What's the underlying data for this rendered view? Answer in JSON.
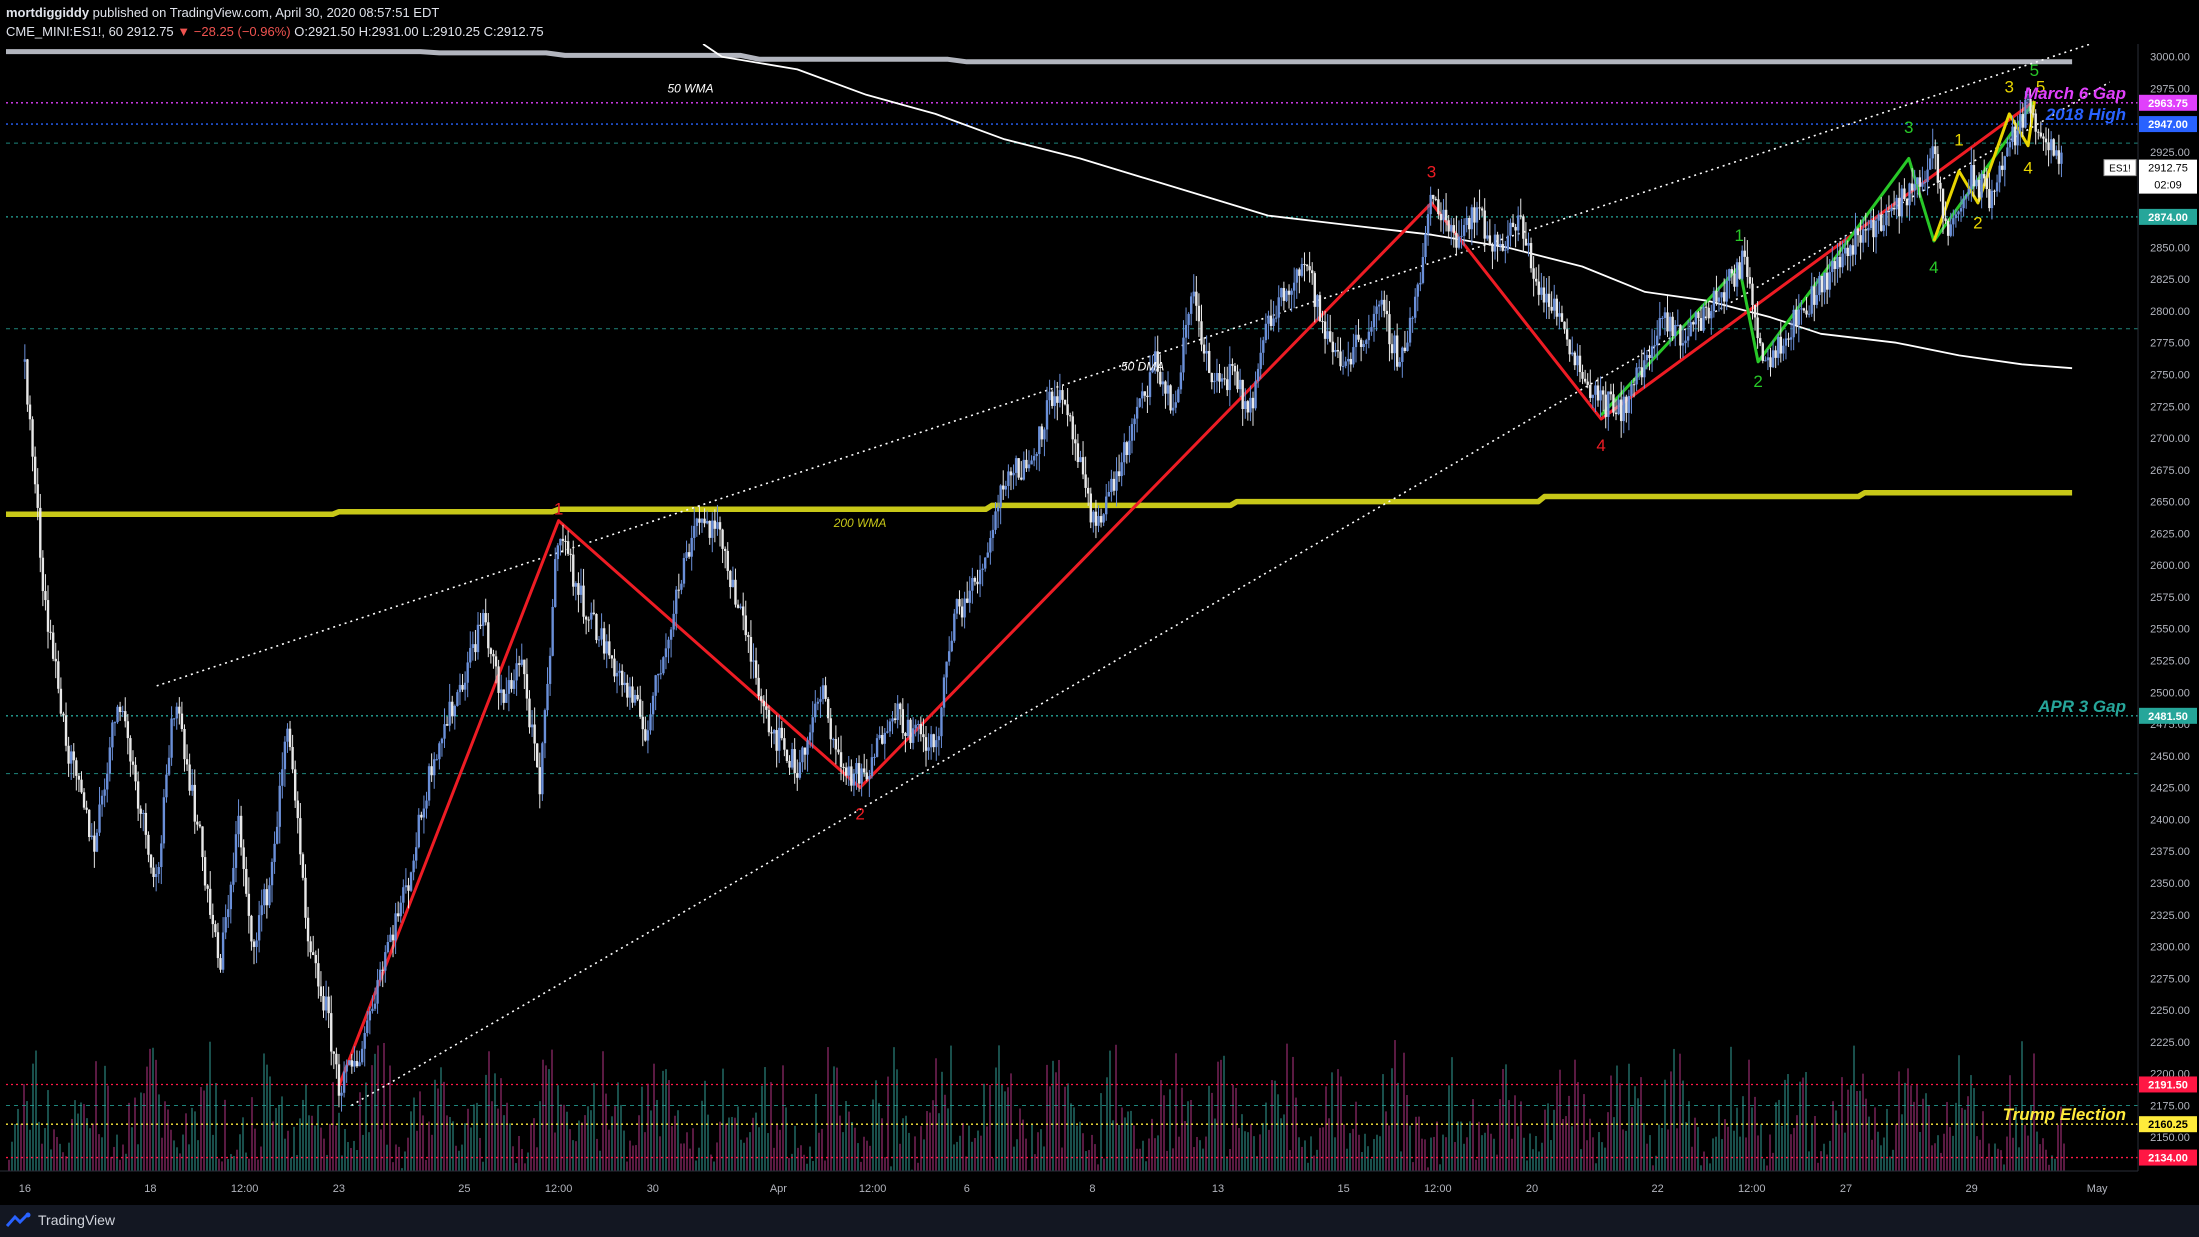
{
  "header": {
    "author": "mortdiggiddy",
    "published": " published on TradingView.com, April 30, 2020 08:57:51 EDT",
    "symbol": "CME_MINI:ES1!, 60",
    "last": "2912.75",
    "change": "▼ −28.25 (−0.96%)",
    "ohlc": "O:2921.50 H:2931.00 L:2910.25 C:2912.75"
  },
  "footer": {
    "brand": "TradingView"
  },
  "chart_data": {
    "type": "candlestick",
    "symbol": "ES1!",
    "interval": "60",
    "ylim": [
      2125,
      3010
    ],
    "y_ticks": [
      2150,
      2175,
      2200,
      2225,
      2250,
      2275,
      2300,
      2325,
      2350,
      2375,
      2400,
      2425,
      2450,
      2475,
      2500,
      2525,
      2550,
      2575,
      2600,
      2625,
      2650,
      2675,
      2700,
      2725,
      2750,
      2775,
      2800,
      2825,
      2850,
      2875,
      2900,
      2925,
      2950,
      2975,
      3000
    ],
    "x_ticks": [
      {
        "label": "16",
        "t": 0
      },
      {
        "label": "18",
        "t": 2
      },
      {
        "label": "12:00",
        "t": 3.5
      },
      {
        "label": "23",
        "t": 5
      },
      {
        "label": "25",
        "t": 7
      },
      {
        "label": "12:00",
        "t": 8.5
      },
      {
        "label": "30",
        "t": 10
      },
      {
        "label": "Apr",
        "t": 12
      },
      {
        "label": "12:00",
        "t": 13.5
      },
      {
        "label": "6",
        "t": 15
      },
      {
        "label": "8",
        "t": 17
      },
      {
        "label": "13",
        "t": 19
      },
      {
        "label": "15",
        "t": 21
      },
      {
        "label": "12:00",
        "t": 22.5
      },
      {
        "label": "20",
        "t": 24
      },
      {
        "label": "22",
        "t": 26
      },
      {
        "label": "12:00",
        "t": 27.5
      },
      {
        "label": "27",
        "t": 29
      },
      {
        "label": "29",
        "t": 31
      },
      {
        "label": "May",
        "t": 33
      }
    ],
    "x_domain": [
      -0.3,
      33.65
    ],
    "price_path": [
      [
        0,
        2760
      ],
      [
        0.3,
        2580
      ],
      [
        0.7,
        2450
      ],
      [
        1.1,
        2380
      ],
      [
        1.5,
        2500
      ],
      [
        1.8,
        2420
      ],
      [
        2.1,
        2350
      ],
      [
        2.4,
        2500
      ],
      [
        2.8,
        2380
      ],
      [
        3.1,
        2280
      ],
      [
        3.4,
        2400
      ],
      [
        3.6,
        2300
      ],
      [
        3.9,
        2350
      ],
      [
        4.2,
        2480
      ],
      [
        4.5,
        2300
      ],
      [
        4.8,
        2250
      ],
      [
        5.0,
        2190
      ],
      [
        5.3,
        2210
      ],
      [
        5.7,
        2290
      ],
      [
        6.1,
        2350
      ],
      [
        6.5,
        2450
      ],
      [
        6.9,
        2500
      ],
      [
        7.3,
        2560
      ],
      [
        7.6,
        2490
      ],
      [
        7.9,
        2530
      ],
      [
        8.2,
        2420
      ],
      [
        8.5,
        2635
      ],
      [
        8.8,
        2580
      ],
      [
        9.2,
        2540
      ],
      [
        9.6,
        2500
      ],
      [
        9.9,
        2470
      ],
      [
        10.3,
        2560
      ],
      [
        10.7,
        2640
      ],
      [
        11.1,
        2620
      ],
      [
        11.5,
        2540
      ],
      [
        11.9,
        2470
      ],
      [
        12.3,
        2440
      ],
      [
        12.7,
        2500
      ],
      [
        13.0,
        2440
      ],
      [
        13.4,
        2430
      ],
      [
        13.8,
        2490
      ],
      [
        14.1,
        2470
      ],
      [
        14.5,
        2455
      ],
      [
        14.8,
        2560
      ],
      [
        15.2,
        2590
      ],
      [
        15.6,
        2670
      ],
      [
        16.0,
        2680
      ],
      [
        16.4,
        2740
      ],
      [
        16.7,
        2700
      ],
      [
        17.0,
        2630
      ],
      [
        17.3,
        2660
      ],
      [
        17.6,
        2700
      ],
      [
        18.0,
        2760
      ],
      [
        18.3,
        2720
      ],
      [
        18.6,
        2820
      ],
      [
        18.9,
        2740
      ],
      [
        19.2,
        2750
      ],
      [
        19.5,
        2720
      ],
      [
        19.8,
        2790
      ],
      [
        20.1,
        2820
      ],
      [
        20.4,
        2840
      ],
      [
        20.7,
        2780
      ],
      [
        21.0,
        2760
      ],
      [
        21.3,
        2780
      ],
      [
        21.6,
        2800
      ],
      [
        21.9,
        2760
      ],
      [
        22.2,
        2820
      ],
      [
        22.4,
        2890
      ],
      [
        22.8,
        2860
      ],
      [
        23.1,
        2880
      ],
      [
        23.4,
        2850
      ],
      [
        23.8,
        2870
      ],
      [
        24.1,
        2820
      ],
      [
        24.5,
        2790
      ],
      [
        24.8,
        2750
      ],
      [
        25.1,
        2730
      ],
      [
        25.4,
        2720
      ],
      [
        25.8,
        2760
      ],
      [
        26.1,
        2790
      ],
      [
        26.4,
        2780
      ],
      [
        26.8,
        2800
      ],
      [
        27.1,
        2820
      ],
      [
        27.4,
        2840
      ],
      [
        27.7,
        2760
      ],
      [
        28.0,
        2780
      ],
      [
        28.3,
        2800
      ],
      [
        28.6,
        2820
      ],
      [
        28.9,
        2840
      ],
      [
        29.2,
        2860
      ],
      [
        29.5,
        2870
      ],
      [
        29.8,
        2880
      ],
      [
        30.1,
        2900
      ],
      [
        30.4,
        2920
      ],
      [
        30.6,
        2860
      ],
      [
        30.8,
        2880
      ],
      [
        31.0,
        2905
      ],
      [
        31.3,
        2890
      ],
      [
        31.6,
        2930
      ],
      [
        31.9,
        2960
      ],
      [
        32.1,
        2945
      ],
      [
        32.3,
        2920
      ],
      [
        32.45,
        2912.75
      ]
    ],
    "series": [
      {
        "name": "50 WMA",
        "color": "#b2b5be",
        "points": [
          [
            -0.3,
            3004
          ],
          [
            6.3,
            3004
          ],
          [
            6.6,
            3003
          ],
          [
            8.3,
            3003
          ],
          [
            8.6,
            3001
          ],
          [
            11.4,
            3001
          ],
          [
            11.7,
            2998
          ],
          [
            14.7,
            2998
          ],
          [
            15.0,
            2996
          ],
          [
            32.6,
            2996
          ]
        ]
      },
      {
        "name": "200 WMA",
        "color": "#c8c818",
        "points": [
          [
            -0.3,
            2640
          ],
          [
            4.9,
            2640
          ],
          [
            5.0,
            2642
          ],
          [
            8.4,
            2642
          ],
          [
            8.5,
            2644
          ],
          [
            15.3,
            2644
          ],
          [
            15.4,
            2647
          ],
          [
            19.2,
            2647
          ],
          [
            19.3,
            2650
          ],
          [
            24.1,
            2650
          ],
          [
            24.2,
            2654
          ],
          [
            29.2,
            2654
          ],
          [
            29.3,
            2657
          ],
          [
            32.6,
            2657
          ]
        ]
      },
      {
        "name": "50 DMA",
        "color": "#ffffff",
        "points": [
          [
            10.8,
            3010
          ],
          [
            11.1,
            3000
          ],
          [
            12.3,
            2990
          ],
          [
            13.4,
            2970
          ],
          [
            14.5,
            2955
          ],
          [
            15.6,
            2935
          ],
          [
            16.8,
            2920
          ],
          [
            17.8,
            2905
          ],
          [
            18.8,
            2890
          ],
          [
            19.8,
            2875
          ],
          [
            21.0,
            2868
          ],
          [
            22.4,
            2860
          ],
          [
            23.6,
            2850
          ],
          [
            24.8,
            2835
          ],
          [
            25.8,
            2815
          ],
          [
            26.8,
            2808
          ],
          [
            27.8,
            2795
          ],
          [
            28.6,
            2782
          ],
          [
            29.8,
            2775
          ],
          [
            30.8,
            2765
          ],
          [
            31.8,
            2758
          ],
          [
            32.6,
            2755
          ]
        ]
      },
      {
        "name": "Upper channel",
        "color": "#ffffff",
        "dotted": true,
        "points": [
          [
            2.1,
            2505
          ],
          [
            33.2,
            3015
          ]
        ]
      },
      {
        "name": "Lower channel",
        "color": "#ffffff",
        "dotted": true,
        "points": [
          [
            5.2,
            2175
          ],
          [
            33.2,
            2980
          ]
        ]
      },
      {
        "name": "Primary wave count",
        "color": "#ee1c24",
        "points": [
          [
            5.0,
            2190
          ],
          [
            8.5,
            2635
          ],
          [
            13.3,
            2425
          ],
          [
            22.4,
            2885
          ],
          [
            25.1,
            2715
          ],
          [
            32.0,
            2965
          ]
        ]
      },
      {
        "name": "Minor wave count",
        "color": "#28c828",
        "points": [
          [
            25.1,
            2718
          ],
          [
            27.3,
            2835
          ],
          [
            27.6,
            2760
          ],
          [
            30.0,
            2920
          ],
          [
            30.4,
            2855
          ],
          [
            32.0,
            2965
          ]
        ]
      },
      {
        "name": "Micro wave count",
        "color": "#e8d500",
        "points": [
          [
            30.4,
            2855
          ],
          [
            30.8,
            2910
          ],
          [
            31.1,
            2885
          ],
          [
            31.6,
            2955
          ],
          [
            31.9,
            2930
          ],
          [
            32.0,
            2965
          ]
        ]
      }
    ],
    "wave_labels": [
      {
        "text": "1",
        "t": 8.5,
        "y": 2640,
        "color": "#ee1c24"
      },
      {
        "text": "2",
        "t": 13.3,
        "y": 2400,
        "color": "#ee1c24"
      },
      {
        "text": "3",
        "t": 22.4,
        "y": 2905,
        "color": "#ee1c24"
      },
      {
        "text": "4",
        "t": 25.1,
        "y": 2690,
        "color": "#ee1c24"
      },
      {
        "text": "1",
        "t": 27.3,
        "y": 2855,
        "color": "#28c828"
      },
      {
        "text": "2",
        "t": 27.6,
        "y": 2740,
        "color": "#28c828"
      },
      {
        "text": "3",
        "t": 30.0,
        "y": 2940,
        "color": "#28c828"
      },
      {
        "text": "4",
        "t": 30.4,
        "y": 2830,
        "color": "#28c828"
      },
      {
        "text": "5",
        "t": 32.0,
        "y": 2985,
        "color": "#28c828"
      },
      {
        "text": "1",
        "t": 30.8,
        "y": 2930,
        "color": "#e8d500"
      },
      {
        "text": "2",
        "t": 31.1,
        "y": 2865,
        "color": "#e8d500"
      },
      {
        "text": "3",
        "t": 31.6,
        "y": 2972,
        "color": "#e8d500"
      },
      {
        "text": "4",
        "t": 31.9,
        "y": 2908,
        "color": "#e8d500"
      },
      {
        "text": "5",
        "t": 32.1,
        "y": 2972,
        "color": "#e8d500"
      }
    ],
    "levels": [
      {
        "price": 2963.75,
        "label": "2963.75",
        "color": "#e040fb",
        "tag_bg": "#e040fb",
        "text": "March 6 Gap"
      },
      {
        "price": 2947.0,
        "label": "2947.00",
        "color": "#2962ff",
        "tag_bg": "#2962ff",
        "text": "2018 High"
      },
      {
        "price": 2874.0,
        "label": "2874.00",
        "color": "#26a69a",
        "tag_bg": "#26a69a",
        "text": ""
      },
      {
        "price": 2481.5,
        "label": "2481.50",
        "color": "#26a69a",
        "tag_bg": "#26a69a",
        "text": "APR 3 Gap"
      },
      {
        "price": 2191.5,
        "label": "2191.50",
        "color": "#ff1744",
        "tag_bg": "#ff1744",
        "text": ""
      },
      {
        "price": 2160.25,
        "label": "2160.25",
        "color": "#ffeb3b",
        "tag_bg": "#ffeb3b",
        "text": "Trump Election"
      },
      {
        "price": 2134.0,
        "label": "2134.00",
        "color": "#ff1744",
        "tag_bg": "#ff1744",
        "text": ""
      }
    ],
    "extra_dashed": [
      {
        "price": 2932,
        "color": "#26a69a"
      },
      {
        "price": 2786,
        "color": "#26a69a"
      },
      {
        "price": 2436,
        "color": "#26a69a"
      },
      {
        "price": 2175,
        "color": "#26a69a"
      }
    ],
    "annotations": [
      {
        "text": "50 WMA",
        "t": 10.6,
        "y": 2972,
        "color": "#ffffff"
      },
      {
        "text": "200 WMA",
        "t": 13.3,
        "y": 2630,
        "color": "#c8c818"
      },
      {
        "text": "50 DMA",
        "t": 17.8,
        "y": 2753,
        "color": "#ffffff"
      }
    ],
    "last_price": {
      "label": "2912.75",
      "ticker": "ES1!",
      "countdown": "02:09"
    }
  }
}
